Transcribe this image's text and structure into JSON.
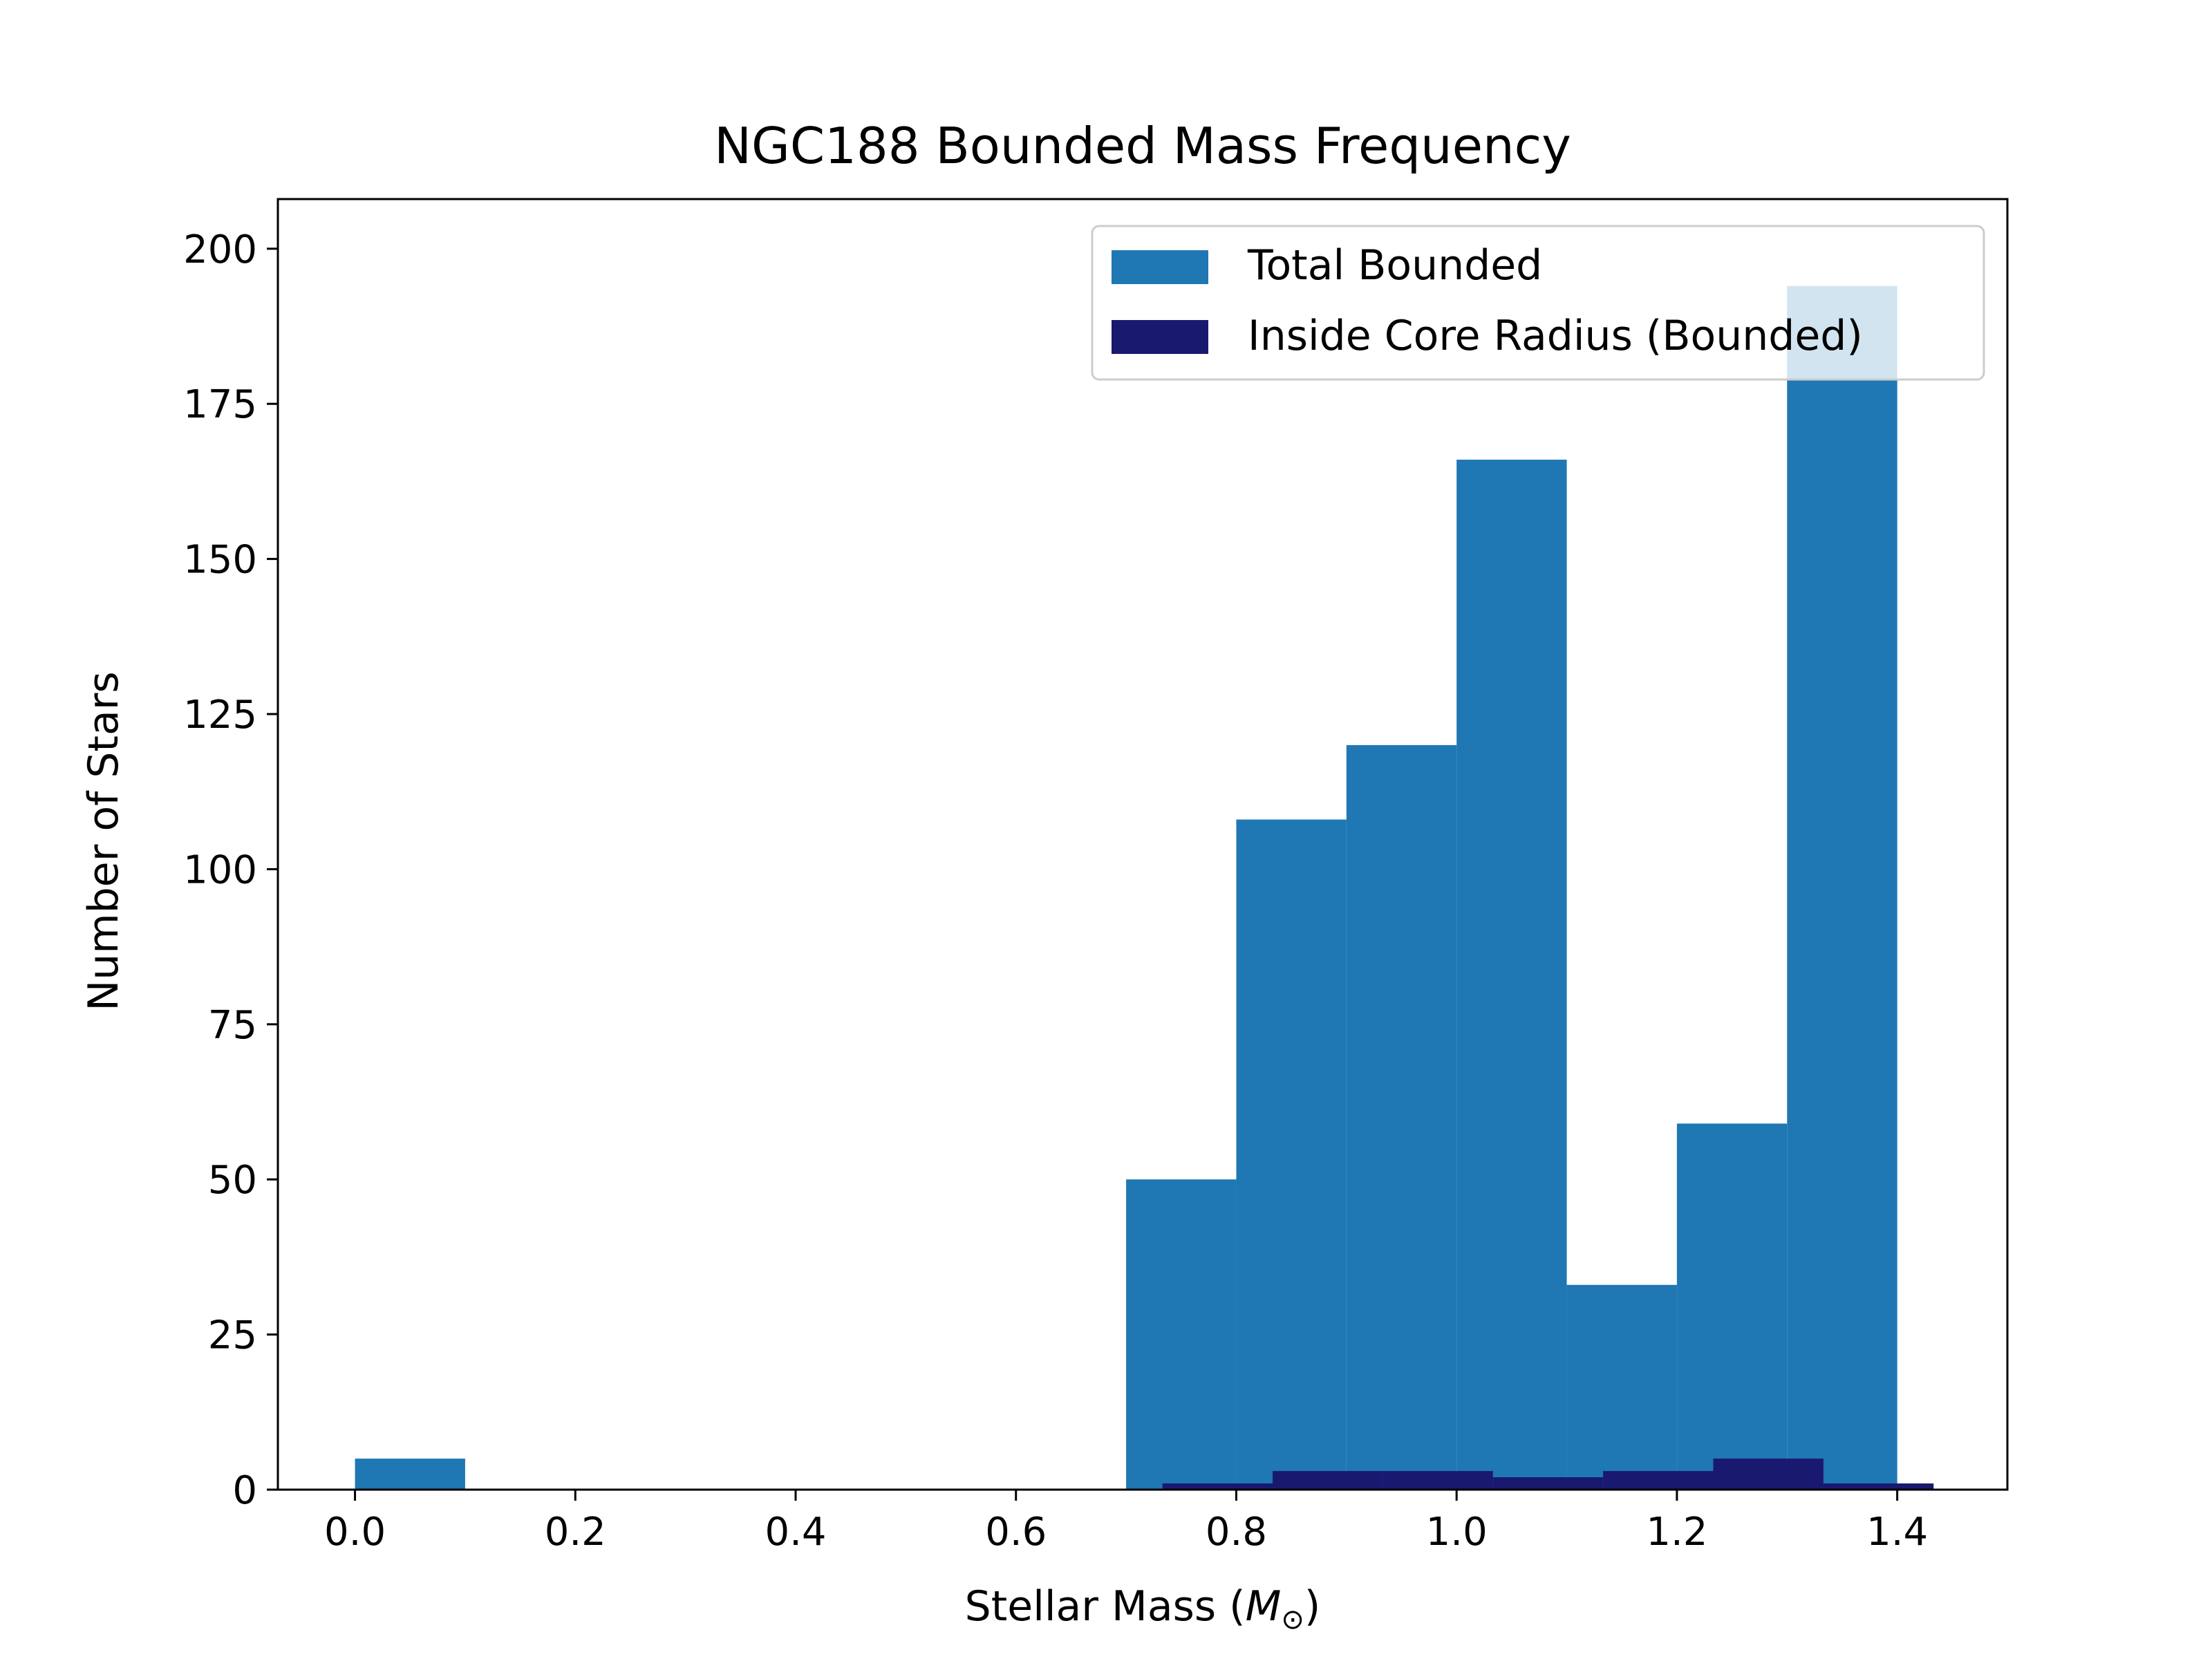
{
  "chart_data": {
    "type": "bar",
    "title": "NGC188 Bounded Mass Frequency",
    "xlabel": "Stellar Mass (",
    "xlabel_symbol": "M",
    "xlabel_subscript": "⊙",
    "xlabel_close": ")",
    "ylabel": "Number of Stars",
    "xlim": [
      -0.07,
      1.5
    ],
    "ylim": [
      0,
      208
    ],
    "xticks": [
      0.0,
      0.2,
      0.4,
      0.6,
      0.8,
      1.0,
      1.2,
      1.4
    ],
    "xtick_labels": [
      "0.0",
      "0.2",
      "0.4",
      "0.6",
      "0.8",
      "1.0",
      "1.2",
      "1.4"
    ],
    "yticks": [
      0,
      25,
      50,
      75,
      100,
      125,
      150,
      175,
      200
    ],
    "ytick_labels": [
      "0",
      "25",
      "50",
      "75",
      "100",
      "125",
      "150",
      "175",
      "200"
    ],
    "grid": false,
    "legend_position": "top-right",
    "series": [
      {
        "name": "Total Bounded",
        "color": "#1f77b4",
        "bins": [
          [
            0.0,
            0.1,
            5
          ],
          [
            0.1,
            0.2,
            0
          ],
          [
            0.2,
            0.3,
            0
          ],
          [
            0.3,
            0.4,
            0
          ],
          [
            0.4,
            0.5,
            0
          ],
          [
            0.5,
            0.6,
            0
          ],
          [
            0.6,
            0.7,
            0
          ],
          [
            0.7,
            0.8,
            50
          ],
          [
            0.8,
            0.9,
            108
          ],
          [
            0.9,
            1.0,
            120
          ],
          [
            1.0,
            1.1,
            166
          ],
          [
            1.1,
            1.2,
            33
          ],
          [
            1.2,
            1.3,
            59
          ],
          [
            1.3,
            1.4,
            194
          ]
        ]
      },
      {
        "name": "Inside Core Radius (Bounded)",
        "color": "#191970",
        "bins": [
          [
            0.733,
            0.833,
            1
          ],
          [
            0.833,
            0.933,
            3
          ],
          [
            0.933,
            1.033,
            3
          ],
          [
            1.033,
            1.133,
            2
          ],
          [
            1.133,
            1.233,
            3
          ],
          [
            1.233,
            1.333,
            5
          ],
          [
            1.333,
            1.433,
            1
          ]
        ]
      }
    ]
  }
}
